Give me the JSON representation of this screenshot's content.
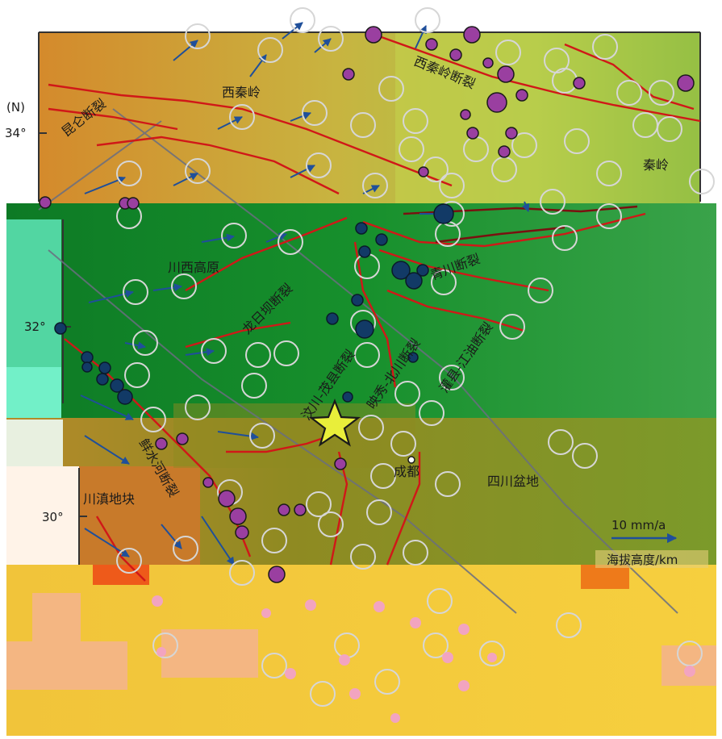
{
  "map": {
    "axis_unit": "(N)",
    "lat_ticks": [
      "34°",
      "32°",
      "30°"
    ],
    "regions": {
      "west_qinling": "西秦岭",
      "qinling": "秦岭",
      "west_sichuan_plateau": "川西高原",
      "sichuan_basin": "四川盆地",
      "sichuan_yunnan_block": "川滇地块",
      "chengdu": "成都"
    },
    "faults": {
      "kunlun": "昆仑断裂",
      "west_qinling": "西秦岭断裂",
      "qingchuan": "青川断裂",
      "longriba": "龙日坝断裂",
      "wenchuan_maoxian": "汶川-茂县断裂",
      "yingxiu_beichuan": "映秀-北川断裂",
      "guanxian_jiangyou": "灌县-江油断裂",
      "xianshuihe": "鲜水河断裂"
    },
    "scale_label": "10 mm/a",
    "elevation_label": "海拔高度/km",
    "colors": {
      "fault": "#d01818",
      "gps_vector": "#1f4f9a",
      "gps_ellipse": "#d6d6d6",
      "quake": "#9a3fa0",
      "epicenter": "#e9ee3a"
    }
  }
}
